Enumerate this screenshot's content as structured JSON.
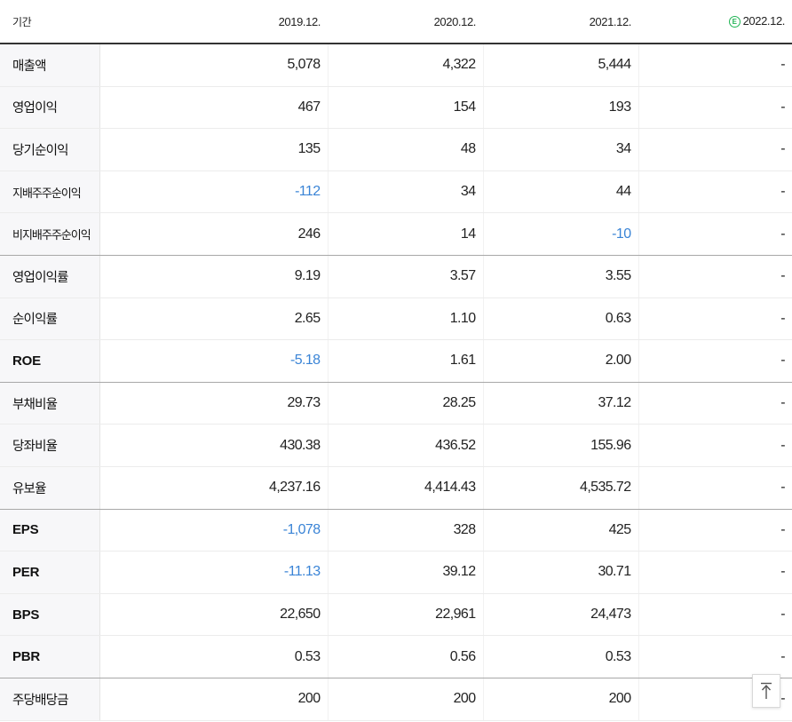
{
  "header": {
    "period_label": "기간",
    "columns": [
      "2019.12.",
      "2020.12.",
      "2021.12.",
      "2022.12."
    ],
    "estimate_badge": "E",
    "estimate_badge_color": "#22b455"
  },
  "colors": {
    "negative": "#3a84d6",
    "label_bg": "#f7f7f9"
  },
  "rows": [
    {
      "label": "매출액",
      "values": [
        "5,078",
        "4,322",
        "5,444",
        "-"
      ]
    },
    {
      "label": "영업이익",
      "values": [
        "467",
        "154",
        "193",
        "-"
      ]
    },
    {
      "label": "당기순이익",
      "values": [
        "135",
        "48",
        "34",
        "-"
      ]
    },
    {
      "label": "지배주주순이익",
      "values": [
        "-112",
        "34",
        "44",
        "-"
      ]
    },
    {
      "label": "비지배주주순이익",
      "values": [
        "246",
        "14",
        "-10",
        "-"
      ]
    },
    {
      "label": "영업이익률",
      "values": [
        "9.19",
        "3.57",
        "3.55",
        "-"
      ]
    },
    {
      "label": "순이익률",
      "values": [
        "2.65",
        "1.10",
        "0.63",
        "-"
      ]
    },
    {
      "label": "ROE",
      "values": [
        "-5.18",
        "1.61",
        "2.00",
        "-"
      ]
    },
    {
      "label": "부채비율",
      "values": [
        "29.73",
        "28.25",
        "37.12",
        "-"
      ]
    },
    {
      "label": "당좌비율",
      "values": [
        "430.38",
        "436.52",
        "155.96",
        "-"
      ]
    },
    {
      "label": "유보율",
      "values": [
        "4,237.16",
        "4,414.43",
        "4,535.72",
        "-"
      ]
    },
    {
      "label": "EPS",
      "values": [
        "-1,078",
        "328",
        "425",
        "-"
      ]
    },
    {
      "label": "PER",
      "values": [
        "-11.13",
        "39.12",
        "30.71",
        "-"
      ]
    },
    {
      "label": "BPS",
      "values": [
        "22,650",
        "22,961",
        "24,473",
        "-"
      ]
    },
    {
      "label": "PBR",
      "values": [
        "0.53",
        "0.56",
        "0.53",
        "-"
      ]
    },
    {
      "label": "주당배당금",
      "values": [
        "200",
        "200",
        "200",
        "-"
      ]
    }
  ],
  "scroll_top_icon": "arrow-up-to-top-icon"
}
